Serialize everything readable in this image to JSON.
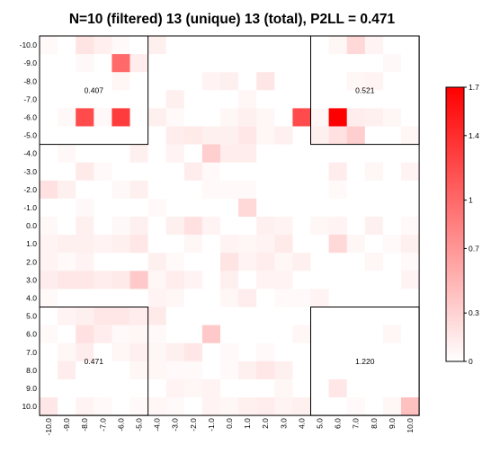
{
  "chart_data": {
    "type": "heatmap",
    "title": "N=10 (filtered) 13 (unique) 13 (total), P2LL = 0.471",
    "xlabel": "",
    "ylabel": "",
    "x_ticks": [
      "-10.0",
      "-9.0",
      "-8.0",
      "-7.0",
      "-6.0",
      "-5.0",
      "-4.0",
      "-3.0",
      "-2.0",
      "-1.0",
      "0.0",
      "1.0",
      "2.0",
      "3.0",
      "4.0",
      "5.0",
      "6.0",
      "7.0",
      "8.0",
      "9.0",
      "10.0"
    ],
    "y_ticks": [
      "-10.0",
      "-9.0",
      "-8.0",
      "-7.0",
      "-6.0",
      "-5.0",
      "-4.0",
      "-3.0",
      "-2.0",
      "-1.0",
      "0.0",
      "1.0",
      "2.0",
      "3.0",
      "4.0",
      "5.0",
      "6.0",
      "7.0",
      "8.0",
      "9.0",
      "10.0"
    ],
    "values": [
      [
        0.04,
        0.0,
        0.18,
        0.11,
        0.04,
        0.0,
        0.1,
        0.0,
        0.0,
        0.0,
        0.0,
        0.0,
        0.0,
        0.0,
        0.0,
        0.0,
        0.06,
        0.26,
        0.08,
        0.0,
        0.0
      ],
      [
        0.0,
        0.0,
        0.05,
        0.0,
        1.0,
        0.12,
        0.0,
        0.0,
        0.0,
        0.0,
        0.0,
        0.0,
        0.0,
        0.0,
        0.0,
        0.0,
        0.0,
        0.0,
        0.0,
        0.05,
        0.0
      ],
      [
        0.0,
        0.0,
        0.0,
        0.0,
        0.06,
        0.0,
        0.0,
        0.0,
        0.0,
        0.08,
        0.1,
        0.0,
        0.17,
        0.0,
        0.0,
        0.0,
        0.0,
        0.06,
        0.08,
        0.0,
        0.0
      ],
      [
        0.0,
        0.0,
        0.0,
        0.0,
        0.0,
        0.0,
        0.0,
        0.1,
        0.0,
        0.0,
        0.0,
        0.06,
        0.0,
        0.0,
        0.0,
        0.0,
        0.0,
        0.0,
        0.0,
        0.0,
        0.0
      ],
      [
        0.0,
        0.05,
        1.2,
        0.05,
        1.3,
        0.0,
        0.1,
        0.04,
        0.0,
        0.0,
        0.06,
        0.1,
        0.06,
        0.0,
        1.2,
        0.06,
        1.7,
        0.12,
        0.1,
        0.06,
        0.0
      ],
      [
        0.0,
        0.0,
        0.0,
        0.0,
        0.0,
        0.0,
        0.0,
        0.12,
        0.14,
        0.1,
        0.1,
        0.16,
        0.06,
        0.1,
        0.0,
        0.1,
        0.2,
        0.32,
        0.0,
        0.0,
        0.06
      ],
      [
        0.0,
        0.05,
        0.0,
        0.0,
        0.0,
        0.1,
        0.0,
        0.08,
        0.0,
        0.33,
        0.12,
        0.12,
        0.0,
        0.0,
        0.0,
        0.0,
        0.0,
        0.0,
        0.0,
        0.0,
        0.0
      ],
      [
        0.0,
        0.0,
        0.14,
        0.04,
        0.0,
        0.0,
        0.0,
        0.0,
        0.12,
        0.04,
        0.0,
        0.0,
        0.0,
        0.0,
        0.0,
        0.0,
        0.12,
        0.0,
        0.06,
        0.0,
        0.08
      ],
      [
        0.2,
        0.1,
        0.0,
        0.0,
        0.05,
        0.1,
        0.0,
        0.0,
        0.0,
        0.04,
        0.04,
        0.04,
        0.0,
        0.0,
        0.0,
        0.0,
        0.04,
        0.0,
        0.0,
        0.0,
        0.0
      ],
      [
        0.0,
        0.0,
        0.05,
        0.0,
        0.0,
        0.0,
        0.04,
        0.0,
        0.0,
        0.0,
        0.0,
        0.26,
        0.0,
        0.0,
        0.0,
        0.0,
        0.0,
        0.0,
        0.0,
        0.0,
        0.0
      ],
      [
        0.05,
        0.0,
        0.1,
        0.0,
        0.05,
        0.1,
        0.0,
        0.1,
        0.2,
        0.08,
        0.0,
        0.0,
        0.1,
        0.08,
        0.0,
        0.06,
        0.08,
        0.0,
        0.1,
        0.0,
        0.04
      ],
      [
        0.08,
        0.1,
        0.1,
        0.08,
        0.1,
        0.16,
        0.0,
        0.0,
        0.06,
        0.0,
        0.08,
        0.06,
        0.08,
        0.14,
        0.0,
        0.0,
        0.26,
        0.06,
        0.0,
        0.04,
        0.1
      ],
      [
        0.08,
        0.04,
        0.08,
        0.0,
        0.0,
        0.0,
        0.1,
        0.04,
        0.0,
        0.0,
        0.18,
        0.08,
        0.12,
        0.06,
        0.1,
        0.0,
        0.0,
        0.0,
        0.06,
        0.0,
        0.04
      ],
      [
        0.12,
        0.16,
        0.16,
        0.12,
        0.14,
        0.36,
        0.06,
        0.12,
        0.08,
        0.0,
        0.1,
        0.0,
        0.08,
        0.08,
        0.0,
        0.0,
        0.0,
        0.0,
        0.0,
        0.0,
        0.08
      ],
      [
        0.04,
        0.0,
        0.0,
        0.0,
        0.0,
        0.0,
        0.08,
        0.06,
        0.0,
        0.0,
        0.06,
        0.12,
        0.0,
        0.04,
        0.04,
        0.08,
        0.0,
        0.0,
        0.0,
        0.0,
        0.0
      ],
      [
        0.0,
        0.08,
        0.1,
        0.16,
        0.16,
        0.12,
        0.14,
        0.0,
        0.0,
        0.0,
        0.0,
        0.0,
        0.0,
        0.0,
        0.0,
        0.0,
        0.0,
        0.0,
        0.0,
        0.0,
        0.0
      ],
      [
        0.04,
        0.0,
        0.2,
        0.12,
        0.04,
        0.06,
        0.04,
        0.0,
        0.0,
        0.36,
        0.0,
        0.0,
        0.0,
        0.0,
        0.06,
        0.0,
        0.0,
        0.0,
        0.0,
        0.06,
        0.0
      ],
      [
        0.0,
        0.06,
        0.12,
        0.0,
        0.06,
        0.1,
        0.06,
        0.1,
        0.16,
        0.0,
        0.04,
        0.0,
        0.04,
        0.0,
        0.0,
        0.0,
        0.0,
        0.0,
        0.0,
        0.0,
        0.0
      ],
      [
        0.0,
        0.12,
        0.0,
        0.0,
        0.0,
        0.06,
        0.06,
        0.04,
        0.04,
        0.0,
        0.04,
        0.1,
        0.16,
        0.1,
        0.0,
        0.0,
        0.0,
        0.0,
        0.0,
        0.0,
        0.0
      ],
      [
        0.0,
        0.0,
        0.0,
        0.0,
        0.0,
        0.0,
        0.0,
        0.08,
        0.06,
        0.08,
        0.0,
        0.0,
        0.0,
        0.06,
        0.0,
        0.0,
        0.16,
        0.0,
        0.0,
        0.0,
        0.0
      ],
      [
        0.16,
        0.0,
        0.08,
        0.04,
        0.0,
        0.04,
        0.06,
        0.04,
        0.0,
        0.08,
        0.06,
        0.1,
        0.12,
        0.08,
        0.1,
        0.0,
        0.0,
        0.04,
        0.0,
        0.06,
        0.42
      ]
    ],
    "vmin": 0,
    "vmax": 1.7,
    "colorscale": [
      "#ffffff",
      "#ff0000"
    ],
    "colorbar_ticks": [
      "0",
      "0.3",
      "0.7",
      "1",
      "1.4",
      "1.7"
    ],
    "colorbar_tick_values": [
      0,
      0.3,
      0.7,
      1.0,
      1.4,
      1.7
    ],
    "quadrants": [
      {
        "x_range": [
          -10,
          -5
        ],
        "y_range": [
          -10,
          -5
        ],
        "label": "0.407"
      },
      {
        "x_range": [
          5,
          10
        ],
        "y_range": [
          -10,
          -5
        ],
        "label": "0.521"
      },
      {
        "x_range": [
          -10,
          -5
        ],
        "y_range": [
          5,
          10
        ],
        "label": "0.471"
      },
      {
        "x_range": [
          5,
          10
        ],
        "y_range": [
          5,
          10
        ],
        "label": "1.220"
      }
    ],
    "grid": false,
    "legend": "colorbar at right"
  }
}
